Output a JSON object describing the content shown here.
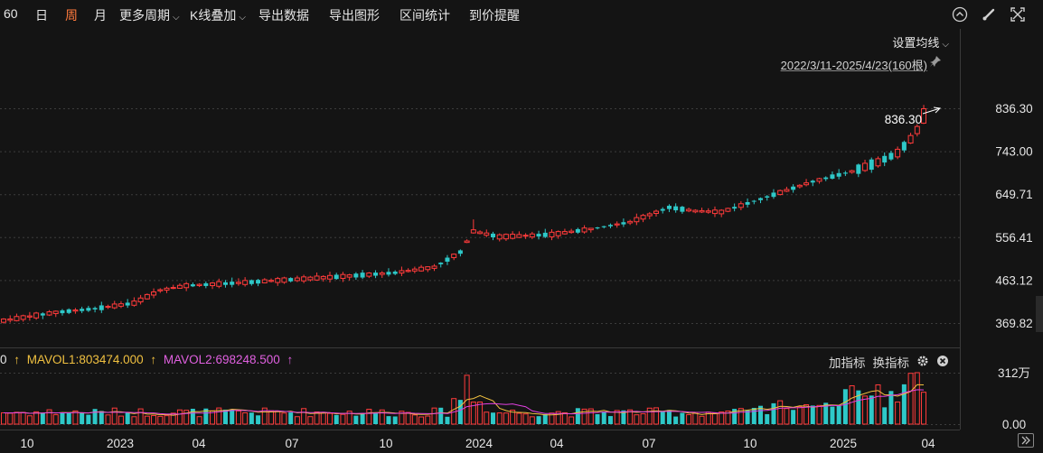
{
  "toolbar": {
    "items": [
      "60",
      "日",
      "周",
      "月",
      "更多周期",
      "K线叠加",
      "导出数据",
      "导出图形",
      "区间统计",
      "到价提醒"
    ],
    "active": "周"
  },
  "ma_setting_label": "设置均线",
  "range_label": "2022/3/11-2025/4/23(160根)",
  "max_label": "836.30",
  "volume_panel": {
    "lead": "0",
    "mavol1": "MAVOL1:803474.000",
    "mavol2": "MAVOL2:698248.500",
    "add_indicator": "加指标",
    "switch_indicator": "换指标"
  },
  "colors": {
    "up": "#ff3b3b",
    "down": "#2ec8c8",
    "mavol1": "#f0c040",
    "mavol2": "#e040e0",
    "active": "#ff7a3d"
  },
  "chart_data": {
    "type": "candlestick",
    "period": "weekly",
    "price_axis": {
      "ticks": [
        836.3,
        743.0,
        649.71,
        556.41,
        463.12,
        369.82
      ]
    },
    "volume_axis": {
      "ticks": [
        "312万",
        "0.00"
      ]
    },
    "x_labels": [
      "10",
      "2023",
      "04",
      "07",
      "10",
      "2024",
      "04",
      "07",
      "10",
      "2025",
      "04"
    ],
    "keyframes": [
      [
        0,
        376
      ],
      [
        8,
        394
      ],
      [
        14,
        402
      ],
      [
        20,
        414
      ],
      [
        24,
        442
      ],
      [
        28,
        452
      ],
      [
        36,
        458
      ],
      [
        44,
        465
      ],
      [
        52,
        472
      ],
      [
        60,
        480
      ],
      [
        66,
        492
      ],
      [
        70,
        525
      ],
      [
        72,
        570
      ],
      [
        76,
        558
      ],
      [
        84,
        563
      ],
      [
        90,
        575
      ],
      [
        96,
        590
      ],
      [
        102,
        622
      ],
      [
        106,
        614
      ],
      [
        110,
        612
      ],
      [
        116,
        640
      ],
      [
        124,
        678
      ],
      [
        130,
        700
      ],
      [
        134,
        720
      ],
      [
        137,
        740
      ],
      [
        139,
        770
      ],
      [
        140,
        790
      ],
      [
        141,
        805
      ]
    ],
    "last_close": 836.3,
    "last_open": 805
  }
}
